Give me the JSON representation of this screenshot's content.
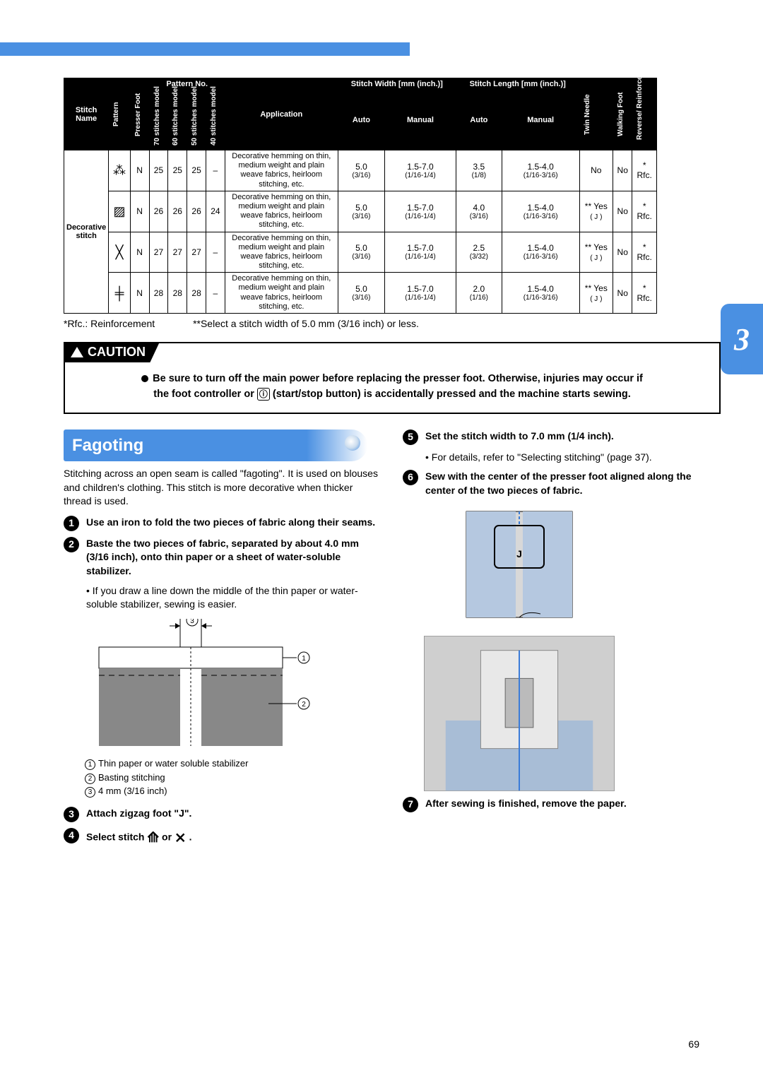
{
  "chapter_tab": "3",
  "page_number": "69",
  "table": {
    "header": {
      "stitch_name": "Stitch Name",
      "pattern": "Pattern",
      "presser_foot": "Presser Foot",
      "pattern_no": "Pattern No.",
      "m70": "70 stitches model",
      "m60": "60 stitches model",
      "m50": "50 stitches model",
      "m40": "40 stitches model",
      "application": "Application",
      "stitch_width": "Stitch Width [mm (inch.)]",
      "stitch_length": "Stitch Length [mm (inch.)]",
      "auto": "Auto",
      "manual": "Manual",
      "twin_needle": "Twin Needle",
      "walking_foot": "Walking Foot",
      "reverse": "Reverse/ Reinforcement Stitching"
    },
    "stitch_name_cell": "Decorative stitch",
    "application_text": "Decorative hemming on thin, medium weight and plain weave fabrics, heirloom stitching, etc.",
    "rows": [
      {
        "icon": "⁂",
        "foot": "N",
        "p70": "25",
        "p60": "25",
        "p50": "25",
        "p40": "–",
        "wa": "5.0",
        "wa2": "(3/16)",
        "wm": "1.5-7.0",
        "wm2": "(1/16-1/4)",
        "la": "3.5",
        "la2": "(1/8)",
        "lm": "1.5-4.0",
        "lm2": "(1/16-3/16)",
        "twin": "No",
        "twinj": "",
        "walk": "No",
        "rev": "*",
        "rev2": "Rfc."
      },
      {
        "icon": "▨",
        "foot": "N",
        "p70": "26",
        "p60": "26",
        "p50": "26",
        "p40": "24",
        "wa": "5.0",
        "wa2": "(3/16)",
        "wm": "1.5-7.0",
        "wm2": "(1/16-1/4)",
        "la": "4.0",
        "la2": "(3/16)",
        "lm": "1.5-4.0",
        "lm2": "(1/16-3/16)",
        "twin": "** Yes",
        "twinj": "( J )",
        "walk": "No",
        "rev": "*",
        "rev2": "Rfc."
      },
      {
        "icon": "╳",
        "foot": "N",
        "p70": "27",
        "p60": "27",
        "p50": "27",
        "p40": "–",
        "wa": "5.0",
        "wa2": "(3/16)",
        "wm": "1.5-7.0",
        "wm2": "(1/16-1/4)",
        "la": "2.5",
        "la2": "(3/32)",
        "lm": "1.5-4.0",
        "lm2": "(1/16-3/16)",
        "twin": "** Yes",
        "twinj": "( J )",
        "walk": "No",
        "rev": "*",
        "rev2": "Rfc."
      },
      {
        "icon": "╪",
        "foot": "N",
        "p70": "28",
        "p60": "28",
        "p50": "28",
        "p40": "–",
        "wa": "5.0",
        "wa2": "(3/16)",
        "wm": "1.5-7.0",
        "wm2": "(1/16-1/4)",
        "la": "2.0",
        "la2": "(1/16)",
        "lm": "1.5-4.0",
        "lm2": "(1/16-3/16)",
        "twin": "** Yes",
        "twinj": "( J )",
        "walk": "No",
        "rev": "*",
        "rev2": "Rfc."
      }
    ]
  },
  "footnotes": {
    "a": "*Rfc.: Reinforcement",
    "b": "**Select a stitch width of 5.0 mm (3/16 inch) or less."
  },
  "caution": {
    "label": "CAUTION",
    "line1": "Be sure to turn off the main power before replacing the presser foot. Otherwise, injuries may occur if",
    "line2_a": "the foot controller or ",
    "line2_b": " (start/stop button) is accidentally pressed and the machine starts sewing."
  },
  "section_title": "Fagoting",
  "intro": "Stitching across an open seam is called \"fagoting\". It is used on blouses and children's clothing. This stitch is more decorative when thicker thread is used.",
  "left_col": {
    "s1": "Use an iron to fold the two pieces of fabric along their seams.",
    "s2": "Baste the two pieces of fabric, separated by about 4.0 mm (3/16 inch), onto thin paper or a sheet of water-soluble stabilizer.",
    "s2_sub": "If you draw a line down the middle of the thin paper or water-soluble stabilizer, sewing is easier.",
    "legend1": "Thin paper or water soluble stabilizer",
    "legend2": "Basting stitching",
    "legend3": "4 mm (3/16 inch)",
    "s3": "Attach zigzag foot \"J\".",
    "s4_a": "Select stitch ",
    "s4_b": " or ",
    "s4_c": " ."
  },
  "right_col": {
    "s5": "Set the stitch width to 7.0 mm (1/4 inch).",
    "s5_sub": "For details, refer to \"Selecting stitching\" (page 37).",
    "s6": "Sew with the center of the presser foot aligned along the center of the two pieces of fabric.",
    "s7": "After sewing is finished, remove the paper."
  }
}
